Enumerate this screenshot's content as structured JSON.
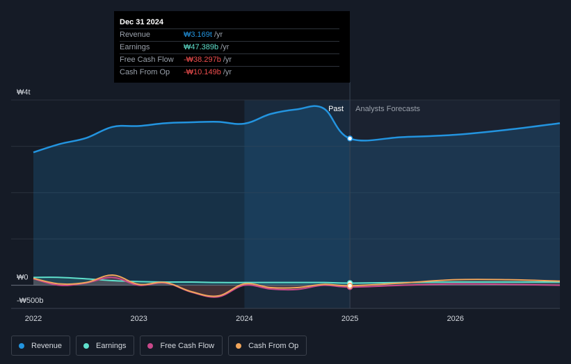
{
  "tooltip": {
    "date": "Dec 31 2024",
    "rows": [
      {
        "label": "Revenue",
        "value": "₩3.169t",
        "unit": "/yr",
        "color": "#2394df"
      },
      {
        "label": "Earnings",
        "value": "₩47.389b",
        "unit": "/yr",
        "color": "#5fe0cc"
      },
      {
        "label": "Free Cash Flow",
        "value": "-₩38.297b",
        "unit": "/yr",
        "color": "#f04e4e"
      },
      {
        "label": "Cash From Op",
        "value": "-₩10.149b",
        "unit": "/yr",
        "color": "#f04e4e"
      }
    ]
  },
  "legend": [
    {
      "label": "Revenue",
      "color": "#2394df"
    },
    {
      "label": "Earnings",
      "color": "#5fe0cc"
    },
    {
      "label": "Free Cash Flow",
      "color": "#c9488a"
    },
    {
      "label": "Cash From Op",
      "color": "#f0a55b"
    }
  ],
  "chart_data": {
    "type": "line",
    "y_unit": "KRW trillions",
    "ylim": [
      -0.5,
      4
    ],
    "y_ticks": [
      {
        "value": 4,
        "label": "₩4t"
      },
      {
        "value": 0,
        "label": "₩0"
      },
      {
        "value": -0.5,
        "label": "-₩500b"
      }
    ],
    "xlim": [
      2021.9,
      2026.99
    ],
    "x_ticks": [
      {
        "value": 2022,
        "label": "2022"
      },
      {
        "value": 2023,
        "label": "2023"
      },
      {
        "value": 2024,
        "label": "2024"
      },
      {
        "value": 2025,
        "label": "2025"
      },
      {
        "value": 2026,
        "label": "2026"
      }
    ],
    "past_label": "Past",
    "forecast_label": "Analysts Forecasts",
    "divider_x": 2025.0,
    "highlight_start_x": 2024.0,
    "marker_x": 2025.0,
    "series": [
      {
        "name": "Revenue",
        "color": "#2394df",
        "x": [
          2022.0,
          2022.25,
          2022.5,
          2022.75,
          2023.0,
          2023.25,
          2023.5,
          2023.75,
          2024.0,
          2024.25,
          2024.5,
          2024.75,
          2025.0,
          2025.5,
          2026.0,
          2026.5,
          2026.99
        ],
        "y": [
          2.87,
          3.05,
          3.18,
          3.42,
          3.44,
          3.5,
          3.52,
          3.53,
          3.49,
          3.7,
          3.8,
          3.82,
          3.169,
          3.2,
          3.25,
          3.36,
          3.5
        ]
      },
      {
        "name": "Earnings",
        "color": "#5fe0cc",
        "x": [
          2022.0,
          2022.25,
          2022.5,
          2022.75,
          2023.0,
          2023.25,
          2023.5,
          2023.75,
          2024.0,
          2024.25,
          2024.5,
          2024.75,
          2025.0,
          2025.5,
          2026.0,
          2026.5,
          2026.99
        ],
        "y": [
          0.17,
          0.17,
          0.14,
          0.1,
          0.08,
          0.07,
          0.07,
          0.06,
          0.06,
          0.06,
          0.06,
          0.06,
          0.047389,
          0.06,
          0.07,
          0.07,
          0.07
        ]
      },
      {
        "name": "Free Cash Flow",
        "color": "#c9488a",
        "x": [
          2022.0,
          2022.25,
          2022.5,
          2022.75,
          2023.0,
          2023.25,
          2023.5,
          2023.75,
          2024.0,
          2024.25,
          2024.5,
          2024.75,
          2025.0,
          2025.5,
          2026.0,
          2026.5,
          2026.99
        ],
        "y": [
          0.14,
          0.0,
          0.05,
          0.17,
          0.0,
          0.05,
          -0.15,
          -0.25,
          0.0,
          -0.08,
          -0.09,
          0.0,
          -0.038297,
          0.0,
          0.03,
          0.02,
          0.0
        ]
      },
      {
        "name": "Cash From Op",
        "color": "#f0a55b",
        "x": [
          2022.0,
          2022.25,
          2022.5,
          2022.75,
          2023.0,
          2023.25,
          2023.5,
          2023.75,
          2024.0,
          2024.25,
          2024.5,
          2024.75,
          2025.0,
          2025.5,
          2026.0,
          2026.5,
          2026.99
        ],
        "y": [
          0.15,
          0.03,
          0.06,
          0.22,
          0.02,
          0.06,
          -0.14,
          -0.23,
          0.03,
          -0.05,
          -0.05,
          0.02,
          -0.010149,
          0.05,
          0.12,
          0.12,
          0.09
        ]
      }
    ]
  }
}
